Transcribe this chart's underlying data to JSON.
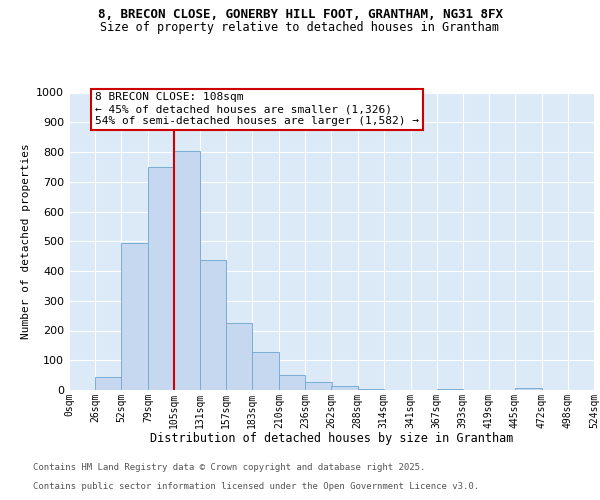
{
  "title": "8, BRECON CLOSE, GONERBY HILL FOOT, GRANTHAM, NG31 8FX",
  "subtitle": "Size of property relative to detached houses in Grantham",
  "xlabel": "Distribution of detached houses by size in Grantham",
  "ylabel": "Number of detached properties",
  "bar_color": "#c5d8f0",
  "bar_edge_color": "#7aadd4",
  "plot_bg_color": "#dce9f7",
  "fig_bg_color": "#ffffff",
  "grid_color": "#ffffff",
  "bin_edges": [
    0,
    26,
    52,
    79,
    105,
    131,
    157,
    183,
    210,
    236,
    262,
    288,
    314,
    341,
    367,
    393,
    419,
    445,
    472,
    498,
    524
  ],
  "bin_labels": [
    "0sqm",
    "26sqm",
    "52sqm",
    "79sqm",
    "105sqm",
    "131sqm",
    "157sqm",
    "183sqm",
    "210sqm",
    "236sqm",
    "262sqm",
    "288sqm",
    "314sqm",
    "341sqm",
    "367sqm",
    "393sqm",
    "419sqm",
    "445sqm",
    "472sqm",
    "498sqm",
    "524sqm"
  ],
  "bar_heights": [
    0,
    43,
    493,
    748,
    805,
    437,
    225,
    127,
    50,
    28,
    15,
    5,
    0,
    0,
    4,
    0,
    0,
    6,
    0,
    0
  ],
  "vline_x": 105,
  "vline_color": "#cc0000",
  "annotation_text": "8 BRECON CLOSE: 108sqm\n← 45% of detached houses are smaller (1,326)\n54% of semi-detached houses are larger (1,582) →",
  "annotation_box_color": "#ffffff",
  "annotation_box_edge": "#cc0000",
  "ylim": [
    0,
    1000
  ],
  "yticks": [
    0,
    100,
    200,
    300,
    400,
    500,
    600,
    700,
    800,
    900,
    1000
  ],
  "footer_line1": "Contains HM Land Registry data © Crown copyright and database right 2025.",
  "footer_line2": "Contains public sector information licensed under the Open Government Licence v3.0."
}
